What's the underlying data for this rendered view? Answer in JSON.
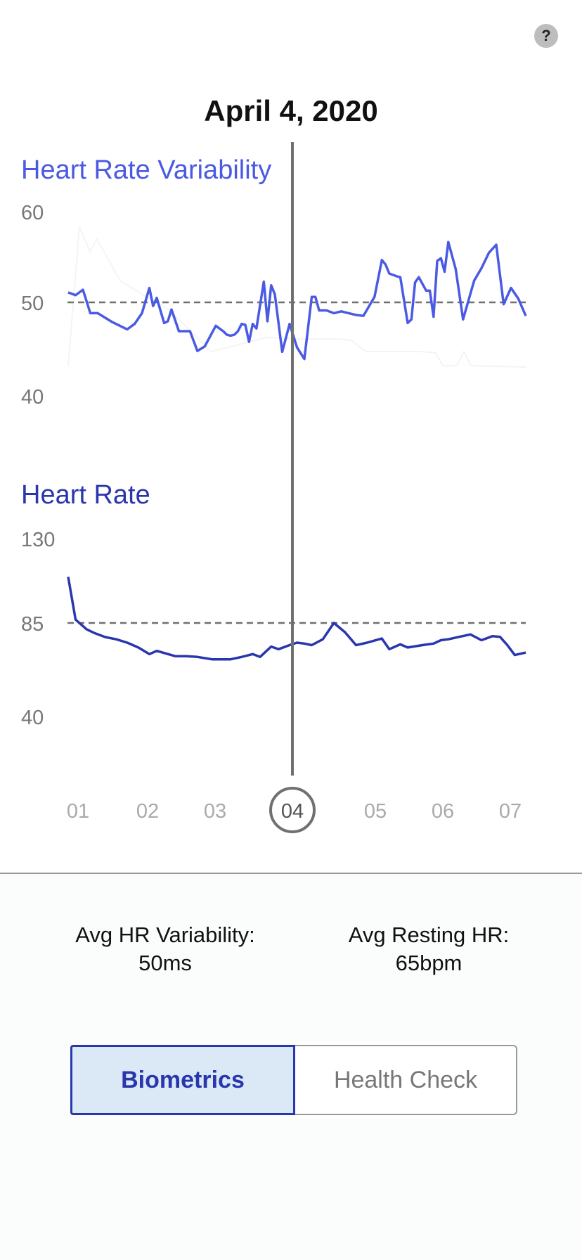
{
  "help": {
    "label": "?"
  },
  "date_title": "April 4, 2020",
  "stats": {
    "hrv_label": "Avg HR Variability:",
    "hrv_value": "50ms",
    "hr_label": "Avg Resting HR:",
    "hr_value": "65bpm"
  },
  "tabs": [
    {
      "label": "Biometrics",
      "active": true
    },
    {
      "label": "Health Check",
      "active": false
    }
  ],
  "colors": {
    "hrv": "#4a5ae3",
    "hr": "#2a36ad",
    "cursor": "#707070",
    "reference": "#707070"
  },
  "chart_data": [
    {
      "type": "line",
      "title": "Heart Rate Variability",
      "yticks": [
        "60",
        "50",
        "40"
      ],
      "ylim": [
        40,
        60
      ],
      "reference_line": 50,
      "selected_x": 4,
      "x_ticks": [
        "01",
        "02",
        "03",
        "04",
        "05",
        "06",
        "07"
      ],
      "series": [
        {
          "x": [
            1,
            1.1,
            1.2,
            1.3,
            1.4,
            1.6,
            1.8,
            1.9,
            2.0,
            2.1,
            2.15,
            2.2,
            2.3,
            2.35,
            2.4,
            2.5,
            2.55,
            2.65,
            2.75,
            2.85,
            3.0,
            3.1,
            3.15,
            3.2,
            3.25,
            3.3,
            3.35,
            3.4,
            3.45,
            3.5,
            3.55,
            3.65,
            3.7,
            3.75,
            3.8,
            3.9,
            4.0,
            4.1,
            4.2,
            4.3,
            4.35,
            4.4,
            4.5,
            4.6,
            4.7,
            4.8,
            4.9,
            5.0,
            5.15,
            5.25,
            5.3,
            5.35,
            5.45,
            5.5,
            5.6,
            5.65,
            5.7,
            5.75,
            5.85,
            5.9,
            5.95,
            6.0,
            6.05,
            6.1,
            6.15,
            6.25,
            6.35,
            6.5,
            6.6,
            6.7,
            6.8,
            6.9,
            7.0,
            7.1,
            7.2
          ],
          "values": [
            51.1,
            50.8,
            51.4,
            48.8,
            48.8,
            47.8,
            47.0,
            47.6,
            48.8,
            51.6,
            49.6,
            50.5,
            47.7,
            47.9,
            49.2,
            46.8,
            46.8,
            46.8,
            44.6,
            45.1,
            47.4,
            46.8,
            46.4,
            46.3,
            46.4,
            46.8,
            47.6,
            47.5,
            45.6,
            47.6,
            47.1,
            52.3,
            47.9,
            51.9,
            50.9,
            44.5,
            47.6,
            45.0,
            43.7,
            50.6,
            50.6,
            49.1,
            49.1,
            48.8,
            49.0,
            48.8,
            48.6,
            48.5,
            50.6,
            54.7,
            54.2,
            53.2,
            52.9,
            52.8,
            47.7,
            48.1,
            52.2,
            52.8,
            51.3,
            51.3,
            48.4,
            54.6,
            54.9,
            53.4,
            56.7,
            53.7,
            48.1,
            52.4,
            53.8,
            55.5,
            56.4,
            49.8,
            51.6,
            50.4,
            48.5
          ],
          "color": "#4a5ae3"
        }
      ]
    },
    {
      "type": "line",
      "title": "Heart Rate",
      "yticks": [
        "130",
        "85",
        "40"
      ],
      "ylim": [
        40,
        130
      ],
      "reference_line": 85,
      "selected_x": 4,
      "x_ticks": [
        "01",
        "02",
        "03",
        "04",
        "05",
        "06",
        "07"
      ],
      "series": [
        {
          "x": [
            1,
            1.1,
            1.25,
            1.35,
            1.5,
            1.65,
            1.8,
            1.95,
            2.1,
            2.2,
            2.45,
            2.6,
            2.75,
            2.95,
            3.05,
            3.2,
            3.35,
            3.5,
            3.6,
            3.75,
            3.85,
            4.0,
            4.1,
            4.2,
            4.3,
            4.45,
            4.6,
            4.75,
            4.9,
            5.05,
            5.25,
            5.35,
            5.5,
            5.6,
            5.8,
            5.95,
            6.05,
            6.15,
            6.3,
            6.45,
            6.6,
            6.75,
            6.85,
            6.95,
            7.05,
            7.2
          ],
          "values": [
            109.6,
            86.8,
            81.6,
            79.7,
            77.5,
            76.3,
            74.5,
            71.9,
            68.4,
            70.1,
            67.3,
            67.3,
            66.9,
            65.6,
            65.6,
            65.6,
            66.9,
            68.4,
            66.9,
            72.4,
            71.0,
            73.2,
            74.5,
            74.0,
            73.2,
            76.3,
            85.0,
            80.1,
            73.2,
            74.5,
            76.7,
            71.0,
            73.6,
            71.9,
            73.2,
            74.0,
            75.8,
            76.3,
            77.6,
            78.9,
            75.8,
            78.0,
            77.6,
            73.2,
            67.9,
            69.2
          ],
          "color": "#2a36ad"
        }
      ]
    }
  ]
}
